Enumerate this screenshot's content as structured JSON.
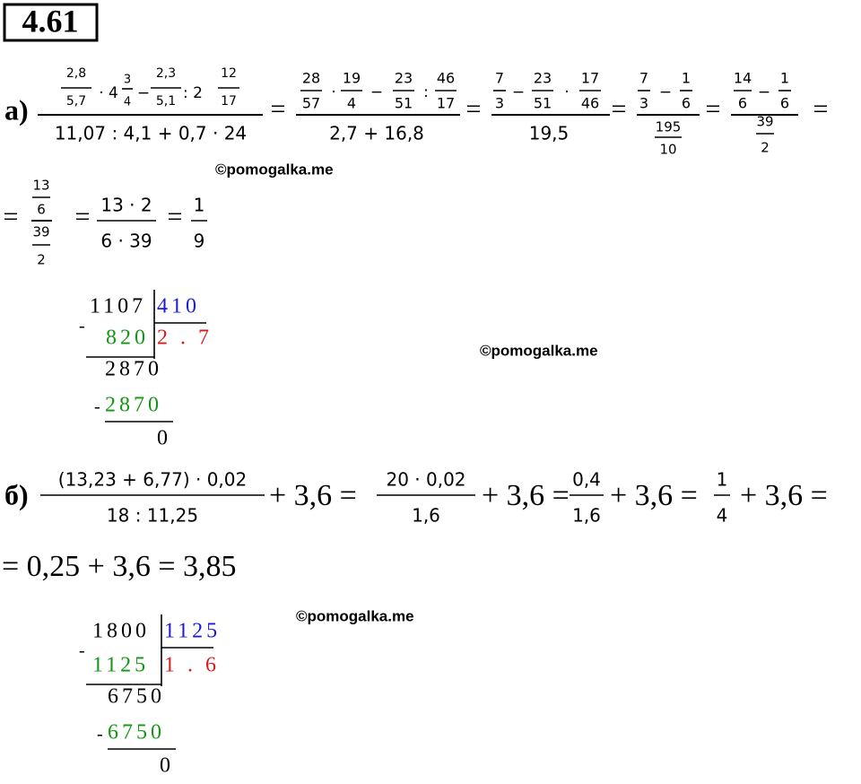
{
  "title": "4.61",
  "watermarks": [
    "©pomogalka.me",
    "©pomogalka.me",
    "©pomogalka.me"
  ],
  "part_a": {
    "label": "а)",
    "line1": [
      "2,8",
      "5,7",
      "· 4",
      "3",
      "4",
      "−",
      "2,3",
      "5,1",
      ": 2",
      "12",
      "17",
      "11,07 : 4,1 + 0,7 · 24",
      "=",
      "28",
      "57",
      "·",
      "19",
      "4",
      "−",
      "23",
      "51",
      ":",
      "46",
      "17",
      "2,7 + 16,8",
      "=",
      "7",
      "3",
      "−",
      "23",
      "51",
      "·",
      "17",
      "46",
      "19,5",
      "=",
      "7",
      "3",
      "−",
      "1",
      "6",
      "195",
      "10",
      "=",
      "14",
      "6",
      "−",
      "1",
      "6",
      "39",
      "2",
      "="
    ],
    "line2": [
      "=",
      "13",
      "6",
      "39",
      "2",
      "=",
      "13 · 2",
      "6 · 39",
      "=",
      "1",
      "9"
    ],
    "division": {
      "dividend": "1107",
      "divisor": "410",
      "minus1": "-",
      "subtrahend1": "820",
      "quotient": "2 . 7",
      "remainder1": "2870",
      "minus2": "-",
      "subtrahend2": "2870",
      "remainder2": "0"
    }
  },
  "part_b": {
    "label": "б)",
    "line1": [
      "(13,23 + 6,77) · 0,02",
      "18 : 11,25",
      "+ 3,6 =",
      "20 · 0,02",
      "1,6",
      "+ 3,6 =",
      "0,4",
      "1,6",
      "+ 3,6 =",
      "1",
      "4",
      "+ 3,6 ="
    ],
    "line2": "= 0,25 + 3,6 = 3,85",
    "division": {
      "dividend": "1800",
      "divisor": "1125",
      "minus1": "-",
      "subtrahend1": "1125",
      "quotient": "1 . 6",
      "remainder1": "6750",
      "minus2": "-",
      "subtrahend2": "6750",
      "remainder2": "0"
    }
  }
}
